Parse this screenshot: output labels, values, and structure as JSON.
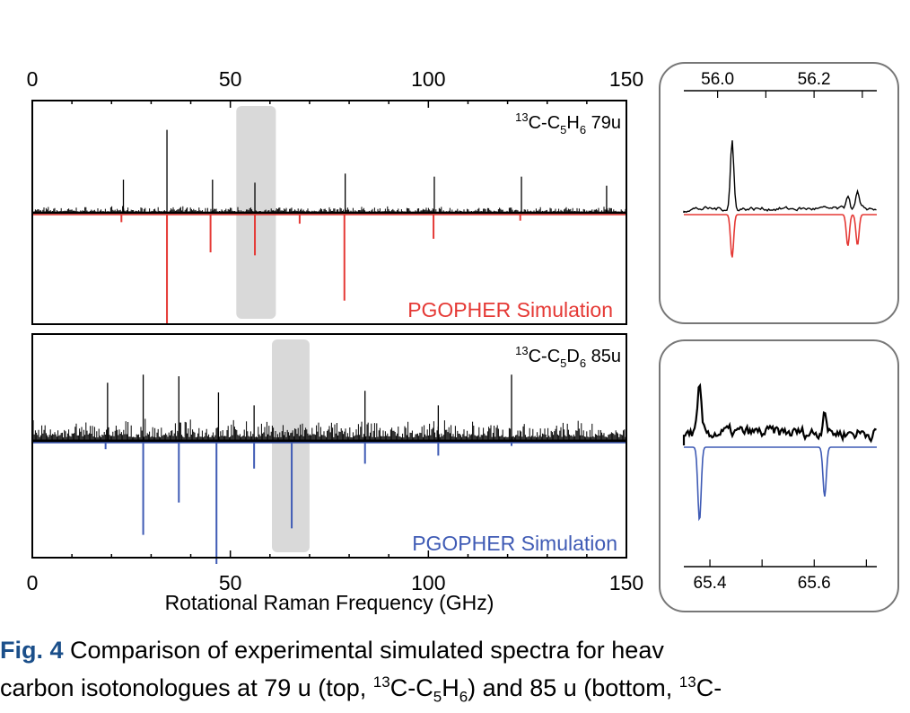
{
  "chart_data": [
    {
      "type": "spectrum",
      "panel": "top-main",
      "top_ticks": [
        "0",
        "50",
        "100",
        "150"
      ],
      "xlim": [
        0,
        150
      ],
      "label_prefix": "13",
      "label_body": "C-C",
      "label_sub1": "5",
      "label_mid": "H",
      "label_sub2": "6",
      "label_mass": " 79u",
      "legend": "PGOPHER Simulation",
      "colors": {
        "experiment": "#000000",
        "simulation": "#e53935"
      },
      "highlight_range": [
        51.5,
        61.5
      ],
      "experiment_peaks": [
        [
          23,
          0.22
        ],
        [
          34,
          0.55
        ],
        [
          45.5,
          0.22
        ],
        [
          56.2,
          0.2
        ],
        [
          79,
          0.26
        ],
        [
          101.5,
          0.24
        ],
        [
          123.5,
          0.24
        ],
        [
          145,
          0.18
        ]
      ],
      "simulation_peaks": [
        [
          22.5,
          0.05
        ],
        [
          34,
          0.72
        ],
        [
          45,
          0.25
        ],
        [
          56.2,
          0.27
        ],
        [
          67.5,
          0.06
        ],
        [
          78.8,
          0.57
        ],
        [
          101.3,
          0.16
        ],
        [
          123.2,
          0.04
        ]
      ]
    },
    {
      "type": "spectrum",
      "panel": "bottom-main",
      "bottom_ticks": [
        "0",
        "50",
        "100",
        "150"
      ],
      "xlim": [
        0,
        150
      ],
      "xlabel": "Rotational Raman Frequency (GHz)",
      "label_prefix": "13",
      "label_body": "C-C",
      "label_sub1": "5",
      "label_mid": "D",
      "label_sub2": "6",
      "label_mass": " 85u",
      "legend": "PGOPHER Simulation",
      "colors": {
        "experiment": "#000000",
        "simulation": "#3f5bb5"
      },
      "highlight_range": [
        60.5,
        70.0
      ],
      "experiment_peaks": [
        [
          19,
          0.36
        ],
        [
          28,
          0.41
        ],
        [
          37,
          0.4
        ],
        [
          47,
          0.3
        ],
        [
          56,
          0.22
        ],
        [
          84,
          0.31
        ],
        [
          102.5,
          0.22
        ],
        [
          121,
          0.41
        ]
      ],
      "simulation_peaks": [
        [
          18.5,
          0.04
        ],
        [
          28,
          0.57
        ],
        [
          37,
          0.37
        ],
        [
          46.5,
          0.75
        ],
        [
          56,
          0.16
        ],
        [
          65.5,
          0.53
        ],
        [
          84,
          0.13
        ],
        [
          102.5,
          0.08
        ],
        [
          121,
          0.02
        ]
      ]
    },
    {
      "type": "spectrum",
      "panel": "top-zoom",
      "ticks": [
        "56.0",
        "56.2"
      ],
      "xlim": [
        55.93,
        56.33
      ],
      "experiment_peaks": [
        [
          56.03,
          0.85
        ],
        [
          56.27,
          0.18
        ],
        [
          56.29,
          0.2
        ]
      ],
      "simulation_peaks": [
        [
          56.03,
          0.48
        ],
        [
          56.27,
          0.35
        ],
        [
          56.29,
          0.34
        ]
      ]
    },
    {
      "type": "spectrum",
      "panel": "bottom-zoom",
      "ticks": [
        "65.4",
        "65.6"
      ],
      "xlim": [
        65.35,
        65.72
      ],
      "experiment_peaks": [
        [
          65.38,
          0.47
        ],
        [
          65.62,
          0.3
        ]
      ],
      "simulation_peaks": [
        [
          65.38,
          0.82
        ],
        [
          65.62,
          0.55
        ]
      ]
    }
  ],
  "caption": {
    "label": "Fig. 4",
    "text1": "  Comparison of experimental simulated spectra for heav",
    "text2_a": "carbon isotonologues at 79 u (top, ",
    "text2_sup1": "13",
    "text2_b": "C-C",
    "text2_sub1": "5",
    "text2_c": "H",
    "text2_sub2": "6",
    "text2_d": ") and 85 u (bottom, ",
    "text2_sup2": "13",
    "text2_e": "C-"
  }
}
